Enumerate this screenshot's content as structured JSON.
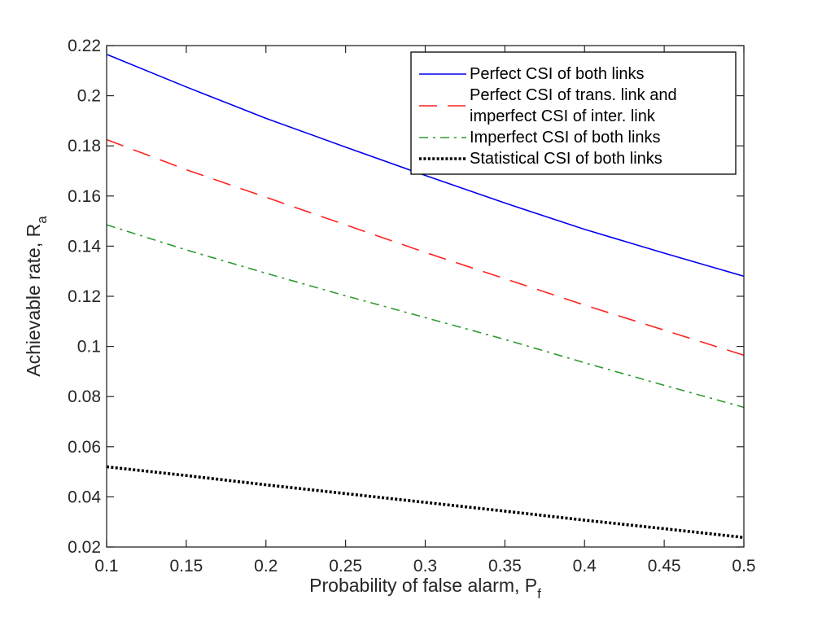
{
  "chart_data": {
    "type": "line",
    "title": "",
    "xlabel": "Probability of false alarm, P",
    "xlabel_sub": "f",
    "ylabel": "Achievable rate, R",
    "ylabel_sub": "a",
    "xlim": [
      0.1,
      0.5
    ],
    "ylim": [
      0.02,
      0.22
    ],
    "xticks": [
      0.1,
      0.15,
      0.2,
      0.25,
      0.3,
      0.35,
      0.4,
      0.45,
      0.5
    ],
    "xtick_labels": [
      "0.1",
      "0.15",
      "0.2",
      "0.25",
      "0.3",
      "0.35",
      "0.4",
      "0.45",
      "0.5"
    ],
    "yticks": [
      0.02,
      0.04,
      0.06,
      0.08,
      0.1,
      0.12,
      0.14,
      0.16,
      0.18,
      0.2,
      0.22
    ],
    "ytick_labels": [
      "0.02",
      "0.04",
      "0.06",
      "0.08",
      "0.1",
      "0.12",
      "0.14",
      "0.16",
      "0.18",
      "0.2",
      "0.22"
    ],
    "grid": false,
    "legend_position": "top-right",
    "x": [
      0.1,
      0.15,
      0.2,
      0.25,
      0.3,
      0.35,
      0.4,
      0.45,
      0.5
    ],
    "series": [
      {
        "name": "Perfect CSI of both links",
        "name_lines": [
          "Perfect CSI of both links"
        ],
        "color": "#0000ee",
        "style": "solid",
        "values": [
          0.2165,
          0.2035,
          0.191,
          0.1795,
          0.1682,
          0.1572,
          0.1467,
          0.1372,
          0.128
        ]
      },
      {
        "name": "Perfect CSI of trans. link and imperfect CSI of inter. link",
        "name_lines": [
          "Perfect CSI of trans. link and",
          "imperfect CSI of inter. link"
        ],
        "color": "#ff2222",
        "style": "dashed",
        "values": [
          0.1825,
          0.1705,
          0.1595,
          0.1485,
          0.1375,
          0.127,
          0.1165,
          0.1065,
          0.0965
        ]
      },
      {
        "name": "Imperfect CSI of both links",
        "name_lines": [
          "Imperfect CSI of both links"
        ],
        "color": "#2e9a2e",
        "style": "dashdot",
        "values": [
          0.1485,
          0.1385,
          0.1292,
          0.1202,
          0.1115,
          0.1028,
          0.0935,
          0.0845,
          0.0757
        ]
      },
      {
        "name": "Statistical CSI of both links",
        "name_lines": [
          "Statistical CSI of both links"
        ],
        "color": "#000000",
        "style": "dotted",
        "values": [
          0.052,
          0.0485,
          0.0448,
          0.0413,
          0.0378,
          0.0343,
          0.0307,
          0.0273,
          0.0238
        ]
      }
    ]
  }
}
